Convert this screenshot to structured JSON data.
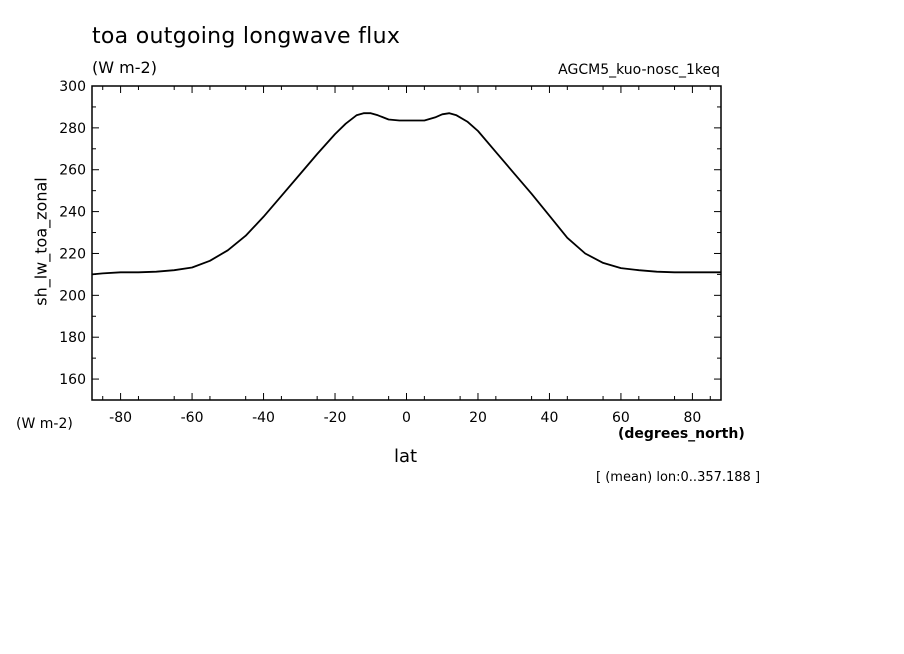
{
  "chart_data": {
    "type": "line",
    "title": "toa outgoing longwave flux",
    "units": "(W m-2)",
    "dataset": "AGCM5_kuo-nosc_1keq",
    "ylabel": "sh_lw_toa_zonal",
    "yunit": "(W m-2)",
    "xlabel": "lat",
    "xunit": "(degrees_north)",
    "note": "[ (mean) lon:0..357.188 ]",
    "xlim": [
      -88,
      88
    ],
    "ylim": [
      150,
      300
    ],
    "xticks": [
      -80,
      -60,
      -40,
      -20,
      0,
      20,
      40,
      60,
      80
    ],
    "xtick_labels": [
      "-80",
      "-60",
      "-40",
      "-20",
      "0",
      "20",
      "40",
      "60",
      "80"
    ],
    "yticks": [
      160,
      180,
      200,
      220,
      240,
      260,
      280,
      300
    ],
    "ytick_labels": [
      "160",
      "180",
      "200",
      "220",
      "240",
      "260",
      "280",
      "300"
    ],
    "grid": false,
    "series": [
      {
        "x": [
          -88,
          -85,
          -80,
          -75,
          -70,
          -65,
          -60,
          -55,
          -50,
          -45,
          -40,
          -35,
          -30,
          -25,
          -20,
          -17,
          -14,
          -12,
          -10,
          -8,
          -5,
          -2,
          0,
          2,
          5,
          8,
          10,
          12,
          14,
          17,
          20,
          25,
          30,
          35,
          40,
          45,
          50,
          55,
          60,
          65,
          70,
          75,
          80,
          85,
          88
        ],
        "y": [
          210.0,
          210.5,
          211.0,
          211.0,
          211.3,
          212.0,
          213.3,
          216.5,
          221.5,
          228.5,
          237.5,
          247.5,
          257.5,
          267.5,
          277.0,
          282.0,
          286.0,
          287.0,
          287.0,
          286.0,
          284.0,
          283.5,
          283.5,
          283.5,
          283.5,
          285.0,
          286.5,
          287.0,
          286.0,
          283.0,
          278.5,
          268.5,
          258.5,
          248.5,
          238.0,
          227.5,
          220.0,
          215.5,
          213.0,
          212.0,
          211.3,
          211.0,
          211.0,
          211.0,
          211.0
        ]
      }
    ]
  }
}
